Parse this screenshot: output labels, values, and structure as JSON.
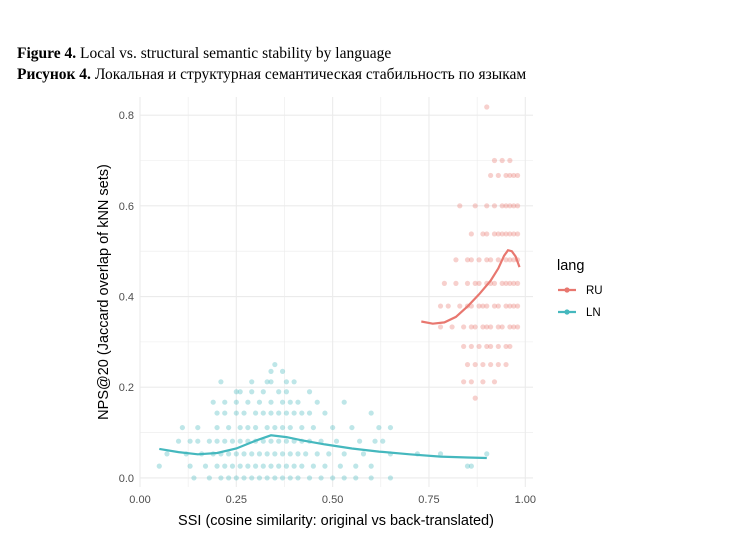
{
  "caption": {
    "en_prefix": "Figure 4.",
    "en_text": " Local vs. structural semantic stability by language",
    "ru_prefix": "Рисунок 4.",
    "ru_text": " Локальная и структурная семантическая стабильность по языкам"
  },
  "colors": {
    "RU": "#e8776f",
    "LN": "#45b8be",
    "grid": "#ebebeb"
  },
  "chart_data": {
    "type": "scatter",
    "xlabel": "SSI (cosine similarity: original vs back-translated)",
    "ylabel": "NPS@20 (Jaccard overlap of kNN sets)",
    "xlim": [
      0.0,
      1.02
    ],
    "ylim": [
      -0.02,
      0.84
    ],
    "xticks": [
      0.0,
      0.25,
      0.5,
      0.75,
      1.0
    ],
    "xtick_labels": [
      "0.00",
      "0.25",
      "0.50",
      "0.75",
      "1.00"
    ],
    "yticks": [
      0.0,
      0.2,
      0.4,
      0.6,
      0.8
    ],
    "ytick_labels": [
      "0.0",
      "0.2",
      "0.4",
      "0.6",
      "0.8"
    ],
    "grid": true,
    "legend": {
      "title": "lang",
      "position": "right",
      "entries": [
        "RU",
        "LN"
      ]
    },
    "series": [
      {
        "name": "RU",
        "point_alpha": 0.35,
        "points": [
          [
            0.9,
            0.818
          ],
          [
            0.92,
            0.7
          ],
          [
            0.94,
            0.7
          ],
          [
            0.96,
            0.7
          ],
          [
            0.93,
            0.667
          ],
          [
            0.95,
            0.667
          ],
          [
            0.96,
            0.667
          ],
          [
            0.97,
            0.667
          ],
          [
            0.98,
            0.667
          ],
          [
            0.91,
            0.667
          ],
          [
            0.92,
            0.6
          ],
          [
            0.94,
            0.6
          ],
          [
            0.95,
            0.6
          ],
          [
            0.96,
            0.6
          ],
          [
            0.97,
            0.6
          ],
          [
            0.98,
            0.6
          ],
          [
            0.9,
            0.6
          ],
          [
            0.83,
            0.6
          ],
          [
            0.87,
            0.6
          ],
          [
            0.89,
            0.538
          ],
          [
            0.9,
            0.538
          ],
          [
            0.92,
            0.538
          ],
          [
            0.93,
            0.538
          ],
          [
            0.94,
            0.538
          ],
          [
            0.95,
            0.538
          ],
          [
            0.96,
            0.538
          ],
          [
            0.97,
            0.538
          ],
          [
            0.98,
            0.538
          ],
          [
            0.86,
            0.538
          ],
          [
            0.86,
            0.481
          ],
          [
            0.88,
            0.481
          ],
          [
            0.9,
            0.481
          ],
          [
            0.91,
            0.481
          ],
          [
            0.93,
            0.481
          ],
          [
            0.95,
            0.481
          ],
          [
            0.96,
            0.481
          ],
          [
            0.97,
            0.481
          ],
          [
            0.98,
            0.481
          ],
          [
            0.82,
            0.481
          ],
          [
            0.85,
            0.481
          ],
          [
            0.85,
            0.429
          ],
          [
            0.87,
            0.429
          ],
          [
            0.88,
            0.429
          ],
          [
            0.9,
            0.429
          ],
          [
            0.91,
            0.429
          ],
          [
            0.92,
            0.429
          ],
          [
            0.94,
            0.429
          ],
          [
            0.95,
            0.429
          ],
          [
            0.96,
            0.429
          ],
          [
            0.97,
            0.429
          ],
          [
            0.98,
            0.429
          ],
          [
            0.82,
            0.429
          ],
          [
            0.79,
            0.429
          ],
          [
            0.83,
            0.379
          ],
          [
            0.85,
            0.379
          ],
          [
            0.86,
            0.379
          ],
          [
            0.88,
            0.379
          ],
          [
            0.89,
            0.379
          ],
          [
            0.9,
            0.379
          ],
          [
            0.92,
            0.379
          ],
          [
            0.93,
            0.379
          ],
          [
            0.95,
            0.379
          ],
          [
            0.96,
            0.379
          ],
          [
            0.97,
            0.379
          ],
          [
            0.98,
            0.379
          ],
          [
            0.78,
            0.379
          ],
          [
            0.8,
            0.379
          ],
          [
            0.84,
            0.333
          ],
          [
            0.86,
            0.333
          ],
          [
            0.87,
            0.333
          ],
          [
            0.89,
            0.333
          ],
          [
            0.9,
            0.333
          ],
          [
            0.91,
            0.333
          ],
          [
            0.93,
            0.333
          ],
          [
            0.94,
            0.333
          ],
          [
            0.96,
            0.333
          ],
          [
            0.97,
            0.333
          ],
          [
            0.98,
            0.333
          ],
          [
            0.81,
            0.333
          ],
          [
            0.78,
            0.333
          ],
          [
            0.84,
            0.29
          ],
          [
            0.86,
            0.29
          ],
          [
            0.88,
            0.29
          ],
          [
            0.9,
            0.29
          ],
          [
            0.91,
            0.29
          ],
          [
            0.93,
            0.29
          ],
          [
            0.95,
            0.29
          ],
          [
            0.96,
            0.29
          ],
          [
            0.85,
            0.25
          ],
          [
            0.87,
            0.25
          ],
          [
            0.89,
            0.25
          ],
          [
            0.91,
            0.25
          ],
          [
            0.93,
            0.25
          ],
          [
            0.95,
            0.25
          ],
          [
            0.86,
            0.212
          ],
          [
            0.89,
            0.212
          ],
          [
            0.92,
            0.212
          ],
          [
            0.84,
            0.212
          ],
          [
            0.87,
            0.176
          ]
        ],
        "smooth": [
          [
            0.73,
            0.345
          ],
          [
            0.76,
            0.34
          ],
          [
            0.79,
            0.343
          ],
          [
            0.82,
            0.355
          ],
          [
            0.85,
            0.378
          ],
          [
            0.88,
            0.405
          ],
          [
            0.91,
            0.435
          ],
          [
            0.93,
            0.462
          ],
          [
            0.945,
            0.49
          ],
          [
            0.955,
            0.502
          ],
          [
            0.965,
            0.5
          ],
          [
            0.975,
            0.488
          ],
          [
            0.985,
            0.465
          ]
        ]
      },
      {
        "name": "LN",
        "point_alpha": 0.35,
        "points": [
          [
            0.35,
            0.25
          ],
          [
            0.34,
            0.235
          ],
          [
            0.37,
            0.235
          ],
          [
            0.21,
            0.212
          ],
          [
            0.29,
            0.212
          ],
          [
            0.33,
            0.212
          ],
          [
            0.34,
            0.212
          ],
          [
            0.38,
            0.212
          ],
          [
            0.4,
            0.212
          ],
          [
            0.25,
            0.19
          ],
          [
            0.29,
            0.19
          ],
          [
            0.32,
            0.19
          ],
          [
            0.36,
            0.19
          ],
          [
            0.38,
            0.19
          ],
          [
            0.44,
            0.19
          ],
          [
            0.26,
            0.19
          ],
          [
            0.19,
            0.167
          ],
          [
            0.22,
            0.167
          ],
          [
            0.25,
            0.167
          ],
          [
            0.28,
            0.167
          ],
          [
            0.31,
            0.167
          ],
          [
            0.34,
            0.167
          ],
          [
            0.37,
            0.167
          ],
          [
            0.39,
            0.167
          ],
          [
            0.41,
            0.167
          ],
          [
            0.46,
            0.167
          ],
          [
            0.53,
            0.167
          ],
          [
            0.22,
            0.143
          ],
          [
            0.25,
            0.143
          ],
          [
            0.27,
            0.143
          ],
          [
            0.3,
            0.143
          ],
          [
            0.32,
            0.143
          ],
          [
            0.34,
            0.143
          ],
          [
            0.36,
            0.143
          ],
          [
            0.38,
            0.143
          ],
          [
            0.4,
            0.143
          ],
          [
            0.42,
            0.143
          ],
          [
            0.44,
            0.143
          ],
          [
            0.48,
            0.143
          ],
          [
            0.6,
            0.143
          ],
          [
            0.2,
            0.143
          ],
          [
            0.15,
            0.111
          ],
          [
            0.2,
            0.111
          ],
          [
            0.23,
            0.111
          ],
          [
            0.26,
            0.111
          ],
          [
            0.28,
            0.111
          ],
          [
            0.3,
            0.111
          ],
          [
            0.33,
            0.111
          ],
          [
            0.35,
            0.111
          ],
          [
            0.37,
            0.111
          ],
          [
            0.39,
            0.111
          ],
          [
            0.42,
            0.111
          ],
          [
            0.45,
            0.111
          ],
          [
            0.5,
            0.111
          ],
          [
            0.55,
            0.111
          ],
          [
            0.62,
            0.111
          ],
          [
            0.65,
            0.111
          ],
          [
            0.11,
            0.111
          ],
          [
            0.13,
            0.081
          ],
          [
            0.15,
            0.081
          ],
          [
            0.18,
            0.081
          ],
          [
            0.2,
            0.081
          ],
          [
            0.22,
            0.081
          ],
          [
            0.24,
            0.081
          ],
          [
            0.26,
            0.081
          ],
          [
            0.28,
            0.081
          ],
          [
            0.3,
            0.081
          ],
          [
            0.32,
            0.081
          ],
          [
            0.34,
            0.081
          ],
          [
            0.36,
            0.081
          ],
          [
            0.38,
            0.081
          ],
          [
            0.4,
            0.081
          ],
          [
            0.42,
            0.081
          ],
          [
            0.44,
            0.081
          ],
          [
            0.47,
            0.081
          ],
          [
            0.51,
            0.081
          ],
          [
            0.57,
            0.081
          ],
          [
            0.61,
            0.081
          ],
          [
            0.63,
            0.081
          ],
          [
            0.1,
            0.081
          ],
          [
            0.07,
            0.053
          ],
          [
            0.12,
            0.053
          ],
          [
            0.16,
            0.053
          ],
          [
            0.19,
            0.053
          ],
          [
            0.21,
            0.053
          ],
          [
            0.23,
            0.053
          ],
          [
            0.25,
            0.053
          ],
          [
            0.27,
            0.053
          ],
          [
            0.29,
            0.053
          ],
          [
            0.31,
            0.053
          ],
          [
            0.33,
            0.053
          ],
          [
            0.35,
            0.053
          ],
          [
            0.37,
            0.053
          ],
          [
            0.39,
            0.053
          ],
          [
            0.41,
            0.053
          ],
          [
            0.43,
            0.053
          ],
          [
            0.46,
            0.053
          ],
          [
            0.49,
            0.053
          ],
          [
            0.53,
            0.053
          ],
          [
            0.58,
            0.053
          ],
          [
            0.65,
            0.053
          ],
          [
            0.72,
            0.053
          ],
          [
            0.78,
            0.053
          ],
          [
            0.9,
            0.053
          ],
          [
            0.05,
            0.026
          ],
          [
            0.13,
            0.026
          ],
          [
            0.17,
            0.026
          ],
          [
            0.2,
            0.026
          ],
          [
            0.22,
            0.026
          ],
          [
            0.24,
            0.026
          ],
          [
            0.26,
            0.026
          ],
          [
            0.28,
            0.026
          ],
          [
            0.3,
            0.026
          ],
          [
            0.32,
            0.026
          ],
          [
            0.34,
            0.026
          ],
          [
            0.36,
            0.026
          ],
          [
            0.38,
            0.026
          ],
          [
            0.4,
            0.026
          ],
          [
            0.42,
            0.026
          ],
          [
            0.45,
            0.026
          ],
          [
            0.48,
            0.026
          ],
          [
            0.52,
            0.026
          ],
          [
            0.56,
            0.026
          ],
          [
            0.6,
            0.026
          ],
          [
            0.85,
            0.026
          ],
          [
            0.86,
            0.026
          ],
          [
            0.14,
            0.0
          ],
          [
            0.18,
            0.0
          ],
          [
            0.21,
            0.0
          ],
          [
            0.23,
            0.0
          ],
          [
            0.25,
            0.0
          ],
          [
            0.27,
            0.0
          ],
          [
            0.29,
            0.0
          ],
          [
            0.31,
            0.0
          ],
          [
            0.33,
            0.0
          ],
          [
            0.35,
            0.0
          ],
          [
            0.37,
            0.0
          ],
          [
            0.39,
            0.0
          ],
          [
            0.41,
            0.0
          ],
          [
            0.44,
            0.0
          ],
          [
            0.47,
            0.0
          ],
          [
            0.5,
            0.0
          ],
          [
            0.53,
            0.0
          ],
          [
            0.56,
            0.0
          ],
          [
            0.6,
            0.0
          ],
          [
            0.65,
            0.0
          ]
        ],
        "smooth": [
          [
            0.05,
            0.064
          ],
          [
            0.1,
            0.057
          ],
          [
            0.15,
            0.052
          ],
          [
            0.2,
            0.055
          ],
          [
            0.25,
            0.065
          ],
          [
            0.3,
            0.082
          ],
          [
            0.34,
            0.094
          ],
          [
            0.38,
            0.09
          ],
          [
            0.42,
            0.083
          ],
          [
            0.48,
            0.074
          ],
          [
            0.55,
            0.065
          ],
          [
            0.62,
            0.058
          ],
          [
            0.7,
            0.052
          ],
          [
            0.78,
            0.047
          ],
          [
            0.85,
            0.045
          ],
          [
            0.9,
            0.044
          ]
        ]
      }
    ]
  }
}
